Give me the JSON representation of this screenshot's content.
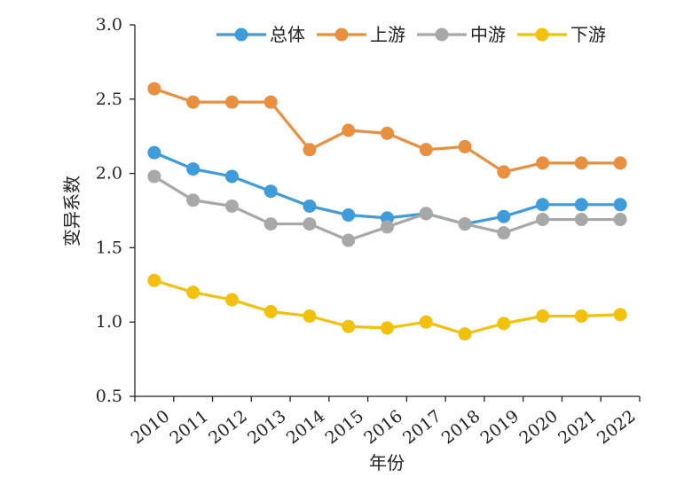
{
  "chart_data": {
    "type": "line",
    "xlabel": "年份",
    "ylabel": "变异系数",
    "ylim": [
      0.5,
      3.0
    ],
    "yticks": [
      "0.5",
      "1.0",
      "1.5",
      "2.0",
      "2.5",
      "3.0"
    ],
    "categories": [
      "2010",
      "2011",
      "2012",
      "2013",
      "2014",
      "2015",
      "2016",
      "2017",
      "2018",
      "2019",
      "2020",
      "2021",
      "2022"
    ],
    "grid": false,
    "legend_position": "top",
    "series": [
      {
        "name": "总体",
        "color": "#3f9bd9",
        "values": [
          2.14,
          2.03,
          1.98,
          1.88,
          1.78,
          1.72,
          1.7,
          1.73,
          1.66,
          1.71,
          1.79,
          1.79,
          1.79
        ]
      },
      {
        "name": "上游",
        "color": "#e8903f",
        "values": [
          2.57,
          2.48,
          2.48,
          2.48,
          2.16,
          2.29,
          2.27,
          2.16,
          2.18,
          2.01,
          2.07,
          2.07,
          2.07
        ]
      },
      {
        "name": "中游",
        "color": "#a8a8a8",
        "values": [
          1.98,
          1.82,
          1.78,
          1.66,
          1.66,
          1.55,
          1.64,
          1.73,
          1.66,
          1.6,
          1.69,
          1.69,
          1.69
        ]
      },
      {
        "name": "下游",
        "color": "#f2c10e",
        "values": [
          1.28,
          1.2,
          1.15,
          1.07,
          1.04,
          0.97,
          0.96,
          1.0,
          0.92,
          0.99,
          1.04,
          1.04,
          1.05
        ]
      }
    ]
  }
}
